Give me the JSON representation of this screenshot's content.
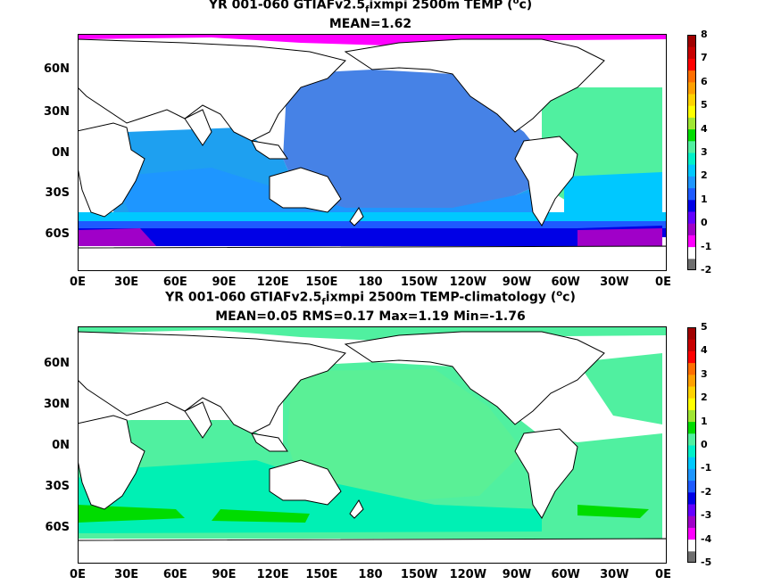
{
  "panels": [
    {
      "title_prefix": "YR 001-060 GTIAFv2.5",
      "title_sub": "f",
      "title_mid": "ixmpi 2500m TEMP (",
      "title_sup": "o",
      "title_end": "c)",
      "subtitle": "MEAN=1.62",
      "colorbar_ticks": [
        "8",
        "7",
        "6",
        "5",
        "4",
        "3",
        "2",
        "1",
        "0",
        "-1",
        "-2"
      ]
    },
    {
      "title_prefix": "YR 001-060 GTIAFv2.5",
      "title_sub": "f",
      "title_mid": "ixmpi 2500m TEMP-climatology (",
      "title_sup": "o",
      "title_end": "c)",
      "subtitle": "MEAN=0.05   RMS=0.17   Max=1.19   Min=-1.76",
      "colorbar_ticks": [
        "5",
        "4",
        "3",
        "2",
        "1",
        "0",
        "-1",
        "-2",
        "-3",
        "-4",
        "-5"
      ]
    }
  ],
  "lat_labels": [
    "60N",
    "30N",
    "0N",
    "30S",
    "60S"
  ],
  "lon_labels": [
    "0E",
    "30E",
    "60E",
    "90E",
    "120E",
    "150E",
    "180",
    "150W",
    "120W",
    "90W",
    "60W",
    "30W",
    "0E"
  ],
  "colorbar_colors": [
    "#6e6e6e",
    "#ffffff",
    "#ff00ff",
    "#a000c8",
    "#6400ff",
    "#0000e6",
    "#1e5aff",
    "#1e96ff",
    "#00c8ff",
    "#00f0c8",
    "#50f0a0",
    "#00dc00",
    "#a0e632",
    "#ffff00",
    "#ffd200",
    "#ffa000",
    "#ff6e00",
    "#ff0000",
    "#c80000",
    "#a00000"
  ]
}
